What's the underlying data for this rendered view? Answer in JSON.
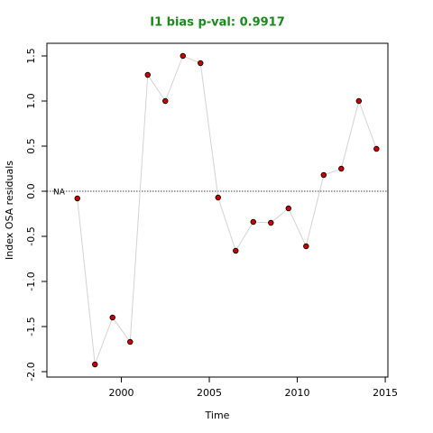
{
  "chart_data": {
    "type": "scatter",
    "title": "I1 bias p-val: 0.9917",
    "xlabel": "Time",
    "ylabel": "Index OSA residuals",
    "annotation": "NA",
    "hline": 0,
    "x": [
      1997.5,
      1998.5,
      1999.5,
      2000.5,
      2001.5,
      2002.5,
      2003.5,
      2004.5,
      2005.5,
      2006.5,
      2007.5,
      2008.5,
      2009.5,
      2010.5,
      2011.5,
      2012.5,
      2013.5,
      2014.5
    ],
    "series": [
      {
        "color": "#cc0000",
        "line_color": "#d3d3d3",
        "values": [
          -0.08,
          -1.92,
          -1.4,
          -1.67,
          1.29,
          1.0,
          1.5,
          1.42,
          -0.07,
          -0.66,
          -0.34,
          -0.35,
          -0.19,
          -0.61,
          0.18,
          0.25,
          1.0,
          0.47
        ]
      }
    ],
    "xlim": [
      1995.77,
      2015.15
    ],
    "ylim": [
      -2.06,
      1.64
    ],
    "xticks": [
      2000,
      2005,
      2010,
      2015
    ],
    "yticks": [
      {
        "value": -2,
        "label": "-2.0"
      },
      -1.5,
      {
        "value": -1,
        "label": "-1.0"
      },
      -0.5,
      {
        "value": 0,
        "label": "0.0"
      },
      0.5,
      {
        "value": 1,
        "label": "1.0"
      },
      1.5
    ]
  }
}
